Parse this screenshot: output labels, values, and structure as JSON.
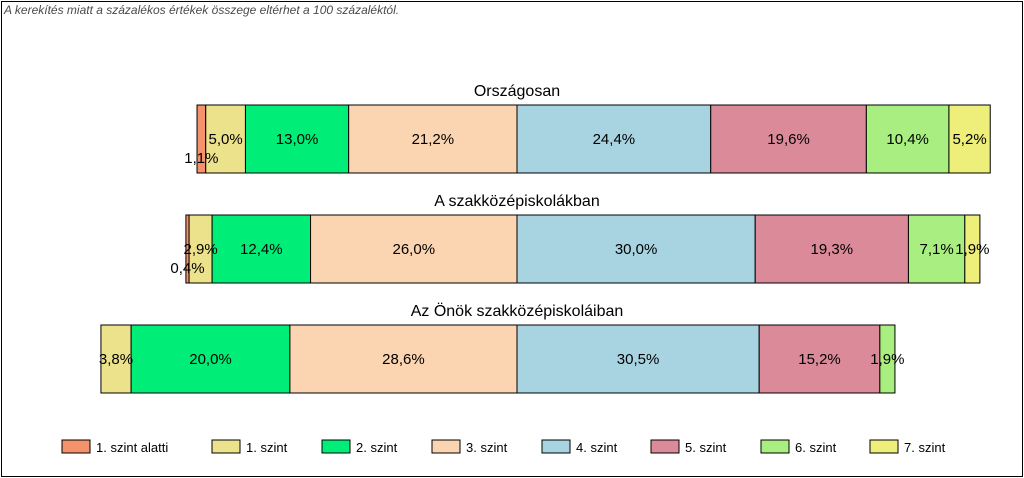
{
  "note": "A kerekítés miatt a  százalékos értékek összege eltérhet a 100 százaléktól.",
  "chart_data": {
    "type": "bar",
    "orientation": "horizontal",
    "stacked": true,
    "legend_position": "bottom",
    "categories": [
      "1. szint alatti",
      "1. szint",
      "2. szint",
      "3. szint",
      "4. szint",
      "5. szint",
      "6. szint",
      "7. szint"
    ],
    "colors": [
      "#f4926c",
      "#ede28c",
      "#00ee77",
      "#fbd4b1",
      "#a8d4e2",
      "#db8a9a",
      "#a8ee80",
      "#eeee7a"
    ],
    "bars": [
      {
        "title": "Országosan",
        "values": [
          1.1,
          5.0,
          13.0,
          21.2,
          24.4,
          19.6,
          10.4,
          5.2
        ],
        "labels": [
          "1,1%",
          "5,0%",
          "13,0%",
          "21,2%",
          "24,4%",
          "19,6%",
          "10,4%",
          "5,2%"
        ]
      },
      {
        "title": "A szakközépiskolákban",
        "values": [
          0.4,
          2.9,
          12.4,
          26.0,
          30.0,
          19.3,
          7.1,
          1.9
        ],
        "labels": [
          "0,4%",
          "2,9%",
          "12,4%",
          "26,0%",
          "30,0%",
          "19,3%",
          "7,1%",
          "1,9%"
        ]
      },
      {
        "title": "Az Önök szakközépiskoláiban",
        "values": [
          0.0,
          3.8,
          20.0,
          28.6,
          30.5,
          15.2,
          1.9,
          0.0
        ],
        "labels": [
          "",
          "3,8%",
          "20,0%",
          "28,6%",
          "30,5%",
          "15,2%",
          "1,9%",
          ""
        ]
      }
    ]
  }
}
